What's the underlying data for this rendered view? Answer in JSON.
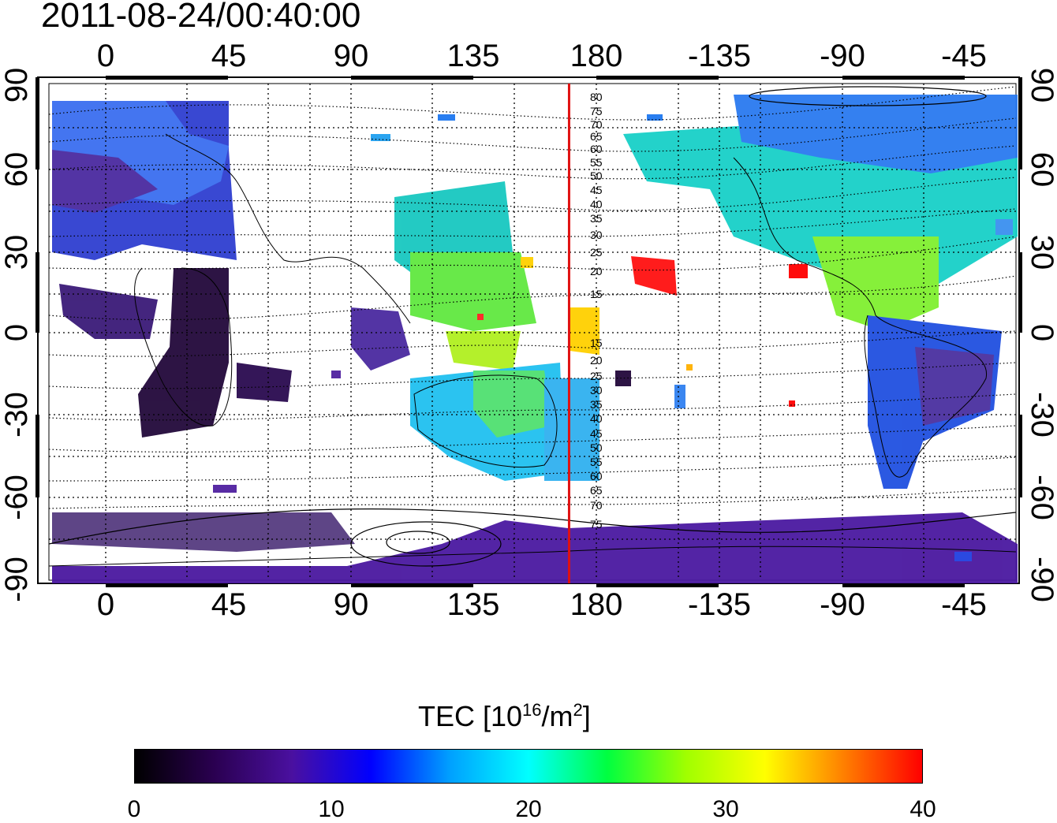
{
  "title": "2011-08-24/00:40:00",
  "map": {
    "lon_ticks": [
      "0",
      "45",
      "90",
      "135",
      "180",
      "-135",
      "-90",
      "-45"
    ],
    "lat_ticks": [
      "90",
      "60",
      "30",
      "0",
      "-30",
      "-60",
      "-90"
    ],
    "contour_labels": [
      "80",
      "75",
      "70",
      "65",
      "60",
      "55",
      "50",
      "45",
      "40",
      "35",
      "30",
      "25",
      "20",
      "15",
      "15",
      "20",
      "25",
      "30",
      "35",
      "40",
      "45",
      "50",
      "55",
      "60",
      "65",
      "70",
      "75"
    ],
    "meridian_line_color": "#e01010",
    "meridian_lon": 170
  },
  "colorbar": {
    "title_main": "TEC  [10",
    "title_exp": "16",
    "title_unit": "/m",
    "title_unit_exp": "2",
    "title_end": "]",
    "ticks": [
      "0",
      "10",
      "20",
      "30",
      "40"
    ],
    "range": [
      0,
      40
    ],
    "colors": [
      "#000000",
      "#2a0050",
      "#4a10a0",
      "#0000ff",
      "#00a0ff",
      "#00ffff",
      "#00ff40",
      "#a0ff00",
      "#ffff00",
      "#ff8000",
      "#ff0000"
    ]
  }
}
